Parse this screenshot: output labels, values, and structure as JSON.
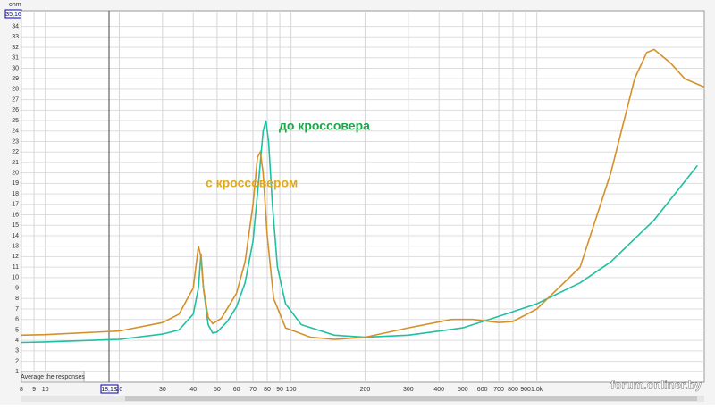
{
  "chart_data": {
    "type": "line",
    "y_label": "ohm",
    "cursor_x_label": "18,18",
    "cursor_y_label": "35,16",
    "button": "Average the responses",
    "watermark": "forum.onliner.by",
    "log_x": true,
    "grid": true,
    "xlim": [
      8,
      4800
    ],
    "xticks": [
      8,
      9,
      10,
      20,
      30,
      40,
      50,
      60,
      70,
      80,
      90,
      100,
      200,
      300,
      400,
      500,
      600,
      700,
      800,
      900,
      {
        "value": 1000,
        "label": "1.0k"
      }
    ],
    "ylim": [
      0,
      35.5
    ],
    "yticks": [
      1,
      2,
      3,
      4,
      5,
      6,
      7,
      8,
      9,
      10,
      11,
      12,
      13,
      14,
      15,
      16,
      17,
      18,
      19,
      20,
      21,
      22,
      23,
      24,
      25,
      26,
      27,
      28,
      29,
      30,
      31,
      32,
      33,
      34
    ],
    "series": [
      {
        "name": "до кроссовера",
        "color": "#20c0a0",
        "x": [
          8,
          10,
          20,
          30,
          35,
          40,
          42,
          43,
          44,
          46,
          48,
          50,
          55,
          60,
          65,
          70,
          74,
          77,
          79,
          81,
          84,
          88,
          95,
          110,
          150,
          200,
          300,
          500,
          700,
          1000,
          1500,
          2000,
          3000,
          4500
        ],
        "values": [
          3.8,
          3.85,
          4.1,
          4.6,
          5.0,
          6.5,
          9,
          12.3,
          9,
          5.5,
          4.7,
          4.8,
          5.8,
          7.2,
          9.5,
          13.5,
          19.5,
          24,
          25,
          23,
          17,
          11,
          7.5,
          5.5,
          4.5,
          4.3,
          4.5,
          5.2,
          6.3,
          7.5,
          9.5,
          11.5,
          15.5,
          20.7
        ]
      },
      {
        "name": "с кроссовером",
        "color": "#d4912a",
        "x": [
          8,
          10,
          20,
          30,
          35,
          40,
          42,
          43,
          44,
          46,
          48,
          52,
          60,
          65,
          70,
          73,
          75,
          77,
          80,
          85,
          95,
          120,
          150,
          200,
          300,
          450,
          550,
          700,
          800,
          1000,
          1500,
          2000,
          2500,
          2800,
          3000,
          3500,
          4000,
          4800
        ],
        "values": [
          4.5,
          4.55,
          4.9,
          5.7,
          6.5,
          9,
          13,
          12,
          9,
          6.2,
          5.6,
          6.1,
          8.5,
          11.5,
          17,
          21.5,
          22,
          20,
          14,
          8,
          5.2,
          4.3,
          4.1,
          4.3,
          5.2,
          6.0,
          6.0,
          5.7,
          5.8,
          7,
          11,
          20,
          29,
          31.5,
          31.8,
          30.5,
          29,
          28.2
        ]
      }
    ]
  }
}
